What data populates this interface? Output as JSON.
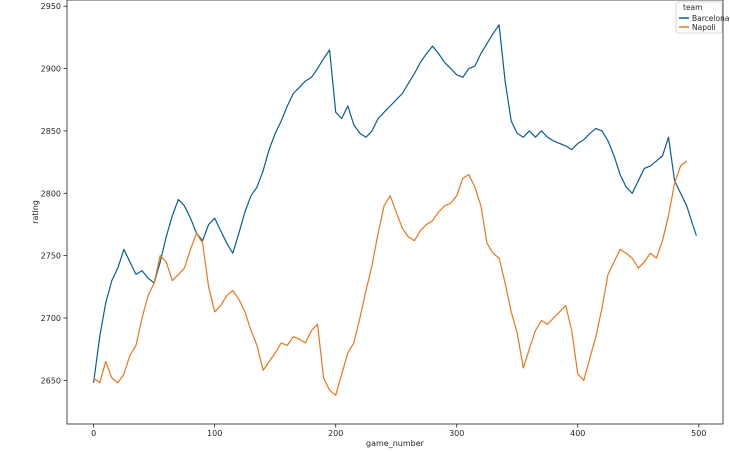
{
  "chart_data": {
    "type": "line",
    "title": "",
    "xlabel": "game_number",
    "ylabel": "rating",
    "xlim": [
      -22,
      520
    ],
    "ylim": [
      2615,
      2955
    ],
    "x_ticks": [
      0,
      100,
      200,
      300,
      400,
      500
    ],
    "y_ticks": [
      2650,
      2700,
      2750,
      2800,
      2850,
      2900,
      2950
    ],
    "grid": false,
    "legend": {
      "title": "team",
      "placement": "top-right"
    },
    "series": [
      {
        "name": "Barcelona",
        "color": "#0b5d91",
        "x": [
          0,
          5,
          10,
          15,
          20,
          25,
          30,
          35,
          40,
          45,
          50,
          55,
          60,
          65,
          70,
          75,
          80,
          85,
          90,
          95,
          100,
          105,
          110,
          115,
          120,
          125,
          130,
          135,
          140,
          145,
          150,
          155,
          160,
          165,
          170,
          175,
          180,
          185,
          190,
          195,
          200,
          205,
          210,
          215,
          220,
          225,
          230,
          235,
          240,
          245,
          250,
          255,
          260,
          265,
          270,
          275,
          280,
          285,
          290,
          295,
          300,
          305,
          310,
          315,
          320,
          325,
          330,
          335,
          340,
          345,
          350,
          355,
          360,
          365,
          370,
          375,
          380,
          385,
          390,
          395,
          400,
          405,
          410,
          415,
          420,
          425,
          430,
          435,
          440,
          445,
          450,
          455,
          460,
          465,
          470,
          475,
          480,
          485,
          490,
          495,
          498
        ],
        "y": [
          2648,
          2685,
          2712,
          2730,
          2740,
          2755,
          2745,
          2735,
          2738,
          2732,
          2728,
          2745,
          2765,
          2782,
          2795,
          2790,
          2780,
          2768,
          2762,
          2775,
          2780,
          2770,
          2760,
          2752,
          2768,
          2785,
          2798,
          2805,
          2818,
          2835,
          2848,
          2858,
          2870,
          2880,
          2885,
          2890,
          2893,
          2900,
          2908,
          2915,
          2865,
          2860,
          2870,
          2855,
          2848,
          2845,
          2850,
          2860,
          2865,
          2870,
          2875,
          2880,
          2888,
          2896,
          2905,
          2912,
          2918,
          2912,
          2905,
          2900,
          2895,
          2893,
          2900,
          2902,
          2912,
          2920,
          2928,
          2935,
          2890,
          2858,
          2848,
          2845,
          2850,
          2845,
          2850,
          2845,
          2842,
          2840,
          2838,
          2835,
          2840,
          2843,
          2848,
          2852,
          2850,
          2842,
          2830,
          2815,
          2805,
          2800,
          2810,
          2820,
          2822,
          2826,
          2830,
          2845,
          2810,
          2800,
          2790,
          2775,
          2766
        ]
      },
      {
        "name": "Napoli",
        "color": "#e8771b",
        "x": [
          0,
          5,
          10,
          15,
          20,
          25,
          30,
          35,
          40,
          45,
          50,
          55,
          60,
          65,
          70,
          75,
          80,
          85,
          90,
          95,
          100,
          105,
          110,
          115,
          120,
          125,
          130,
          135,
          140,
          145,
          150,
          155,
          160,
          165,
          170,
          175,
          180,
          185,
          190,
          195,
          200,
          205,
          210,
          215,
          220,
          225,
          230,
          235,
          240,
          245,
          250,
          255,
          260,
          265,
          270,
          275,
          280,
          285,
          290,
          295,
          300,
          305,
          310,
          315,
          320,
          325,
          330,
          335,
          340,
          345,
          350,
          355,
          360,
          365,
          370,
          375,
          380,
          385,
          390,
          395,
          400,
          405,
          410,
          415,
          420,
          425,
          430,
          435,
          440,
          445,
          450,
          455,
          460,
          465,
          470,
          475,
          480,
          485,
          490
        ],
        "y": [
          2652,
          2648,
          2665,
          2652,
          2648,
          2655,
          2670,
          2678,
          2700,
          2718,
          2728,
          2750,
          2745,
          2730,
          2735,
          2740,
          2755,
          2768,
          2760,
          2725,
          2705,
          2710,
          2718,
          2722,
          2715,
          2705,
          2690,
          2678,
          2658,
          2665,
          2672,
          2680,
          2678,
          2685,
          2683,
          2680,
          2690,
          2695,
          2652,
          2642,
          2638,
          2655,
          2672,
          2680,
          2700,
          2722,
          2742,
          2768,
          2790,
          2798,
          2785,
          2772,
          2765,
          2762,
          2770,
          2775,
          2778,
          2785,
          2790,
          2792,
          2798,
          2812,
          2815,
          2805,
          2790,
          2760,
          2752,
          2748,
          2728,
          2705,
          2688,
          2660,
          2675,
          2690,
          2698,
          2695,
          2700,
          2705,
          2710,
          2690,
          2655,
          2650,
          2668,
          2685,
          2708,
          2735,
          2745,
          2755,
          2752,
          2748,
          2740,
          2745,
          2752,
          2748,
          2762,
          2782,
          2808,
          2822,
          2826
        ]
      }
    ]
  }
}
